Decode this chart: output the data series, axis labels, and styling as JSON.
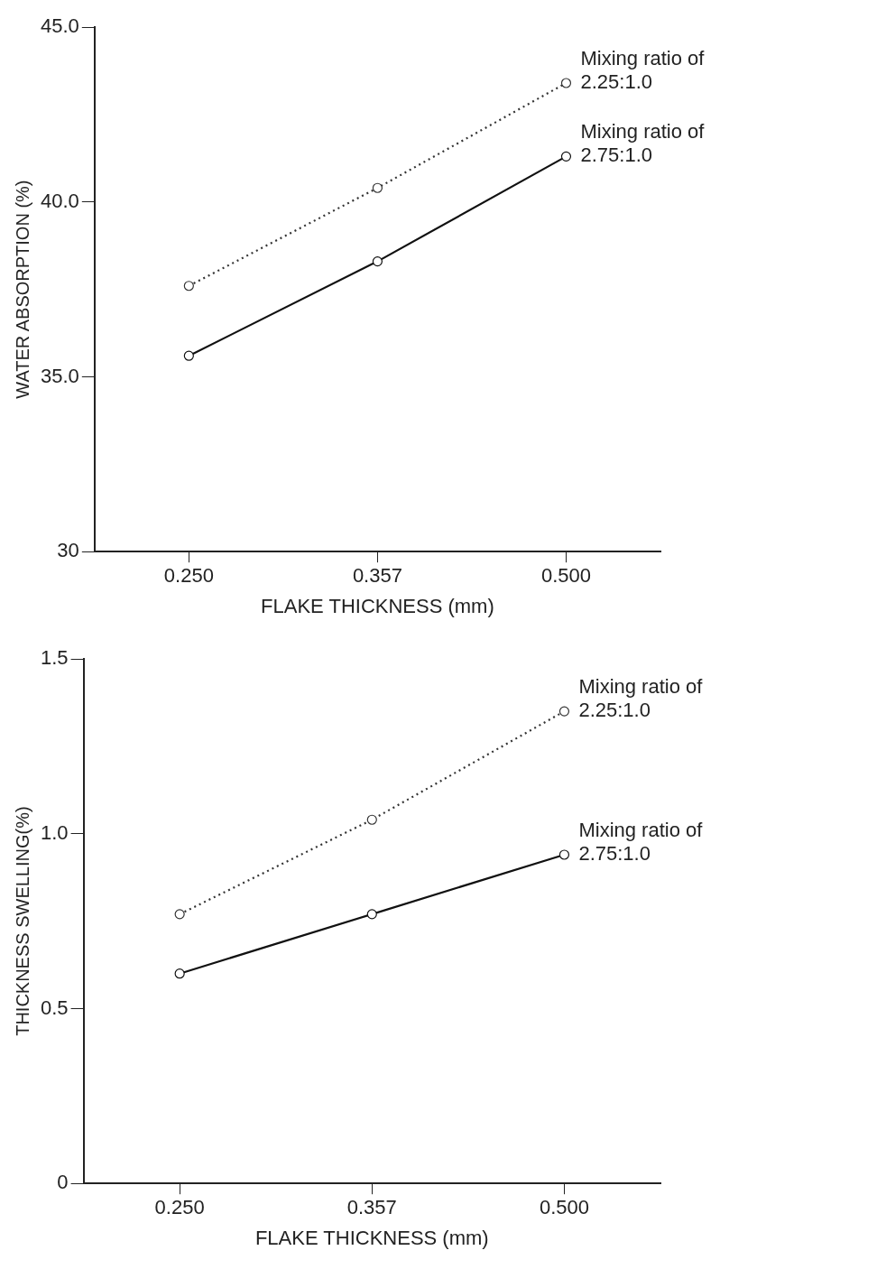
{
  "chart_data": [
    {
      "type": "line",
      "xlabel": "FLAKE THICKNESS (mm)",
      "ylabel": "WATER ABSORPTION (%)",
      "categories": [
        "0.250",
        "0.357",
        "0.500"
      ],
      "series": [
        {
          "name": "Mixing ratio of 2.25:1.0",
          "color": "#333333",
          "line_style": "dotted",
          "values": [
            37.6,
            40.4,
            43.4
          ]
        },
        {
          "name": "Mixing ratio of 2.75:1.0",
          "color": "#111111",
          "line_style": "solid",
          "values": [
            35.6,
            38.3,
            41.3
          ]
        }
      ],
      "ylim": [
        30,
        45
      ],
      "yticks": [
        30,
        {
          "value": 35,
          "label": "35.0"
        },
        {
          "value": 40,
          "label": "40.0"
        },
        {
          "value": 45,
          "label": "45.0"
        }
      ],
      "grid": false,
      "legend": false,
      "marker": "circle"
    },
    {
      "type": "line",
      "xlabel": "FLAKE THICKNESS (mm)",
      "ylabel": "THICKNESS SWELLING(%)",
      "categories": [
        "0.250",
        "0.357",
        "0.500"
      ],
      "series": [
        {
          "name": "Mixing ratio of 2.25:1.0",
          "color": "#333333",
          "line_style": "dotted",
          "values": [
            0.77,
            1.04,
            1.35
          ]
        },
        {
          "name": "Mixing ratio of 2.75:1.0",
          "color": "#111111",
          "line_style": "solid",
          "values": [
            0.6,
            0.77,
            0.94
          ]
        }
      ],
      "ylim": [
        0,
        1.5
      ],
      "yticks": [
        0,
        0.5,
        {
          "value": 1,
          "label": "1.0"
        },
        1.5
      ],
      "grid": false,
      "legend": false,
      "marker": "circle"
    }
  ]
}
